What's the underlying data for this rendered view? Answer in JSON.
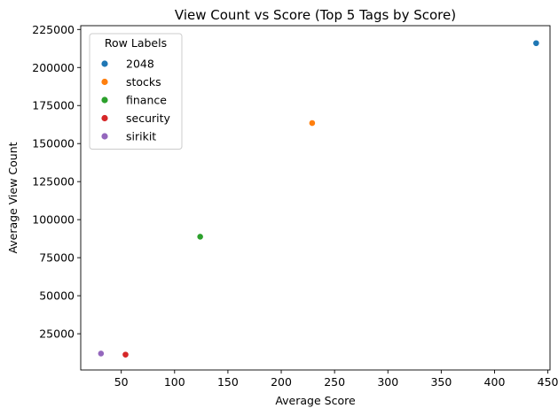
{
  "chart_data": {
    "type": "scatter",
    "title": "View Count vs Score (Top 5 Tags by Score)",
    "xlabel": "Average Score",
    "ylabel": "Average View Count",
    "xlim": [
      12,
      452
    ],
    "ylim": [
      1200,
      227500
    ],
    "xticks": [
      50,
      100,
      150,
      200,
      250,
      300,
      350,
      400,
      450
    ],
    "yticks": [
      25000,
      50000,
      75000,
      100000,
      125000,
      150000,
      175000,
      200000,
      225000
    ],
    "grid": false,
    "legend": {
      "title": "Row Labels",
      "placement": "top-left"
    },
    "series": [
      {
        "name": "2048",
        "color": "#1f77b4",
        "x": [
          439
        ],
        "y": [
          216000
        ]
      },
      {
        "name": "stocks",
        "color": "#ff7f0e",
        "x": [
          229
        ],
        "y": [
          163500
        ]
      },
      {
        "name": "finance",
        "color": "#2ca02c",
        "x": [
          124
        ],
        "y": [
          88800
        ]
      },
      {
        "name": "security",
        "color": "#d62728",
        "x": [
          54
        ],
        "y": [
          11300
        ]
      },
      {
        "name": "sirikit",
        "color": "#9467bd",
        "x": [
          31
        ],
        "y": [
          12000
        ]
      }
    ]
  }
}
